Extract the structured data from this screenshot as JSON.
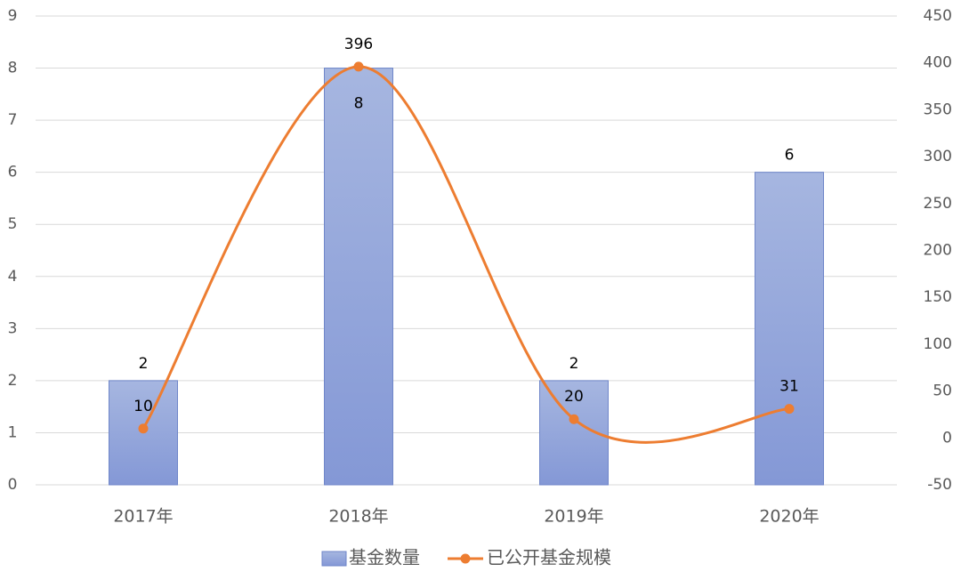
{
  "chart_data": {
    "type": "bar",
    "categories": [
      "2017年",
      "2018年",
      "2019年",
      "2020年"
    ],
    "series": [
      {
        "name": "基金数量",
        "kind": "bar",
        "axis": "left",
        "values": [
          2,
          8,
          2,
          6
        ],
        "labels": [
          "2",
          "8",
          "2",
          "6"
        ]
      },
      {
        "name": "已公开基金规模",
        "kind": "line-smooth",
        "axis": "right",
        "values": [
          10,
          396,
          20,
          31
        ],
        "labels": [
          "10",
          "396",
          "20",
          "31"
        ]
      }
    ],
    "left_axis": {
      "ylim": [
        0,
        9
      ],
      "ticks": [
        "0",
        "1",
        "2",
        "3",
        "4",
        "5",
        "6",
        "7",
        "8",
        "9"
      ]
    },
    "right_axis": {
      "ylim": [
        -50,
        450
      ],
      "ticks": [
        "-50",
        "0",
        "50",
        "100",
        "150",
        "200",
        "250",
        "300",
        "350",
        "400",
        "450"
      ]
    },
    "grid": true,
    "legend": "bottom",
    "colors": {
      "bar_top": "#a6b6e0",
      "bar_bottom": "#8498d6",
      "bar_edge": "#6f86c9",
      "line": "#ed7d31",
      "grid": "#d9d9d9",
      "axis_text": "#595959"
    }
  }
}
